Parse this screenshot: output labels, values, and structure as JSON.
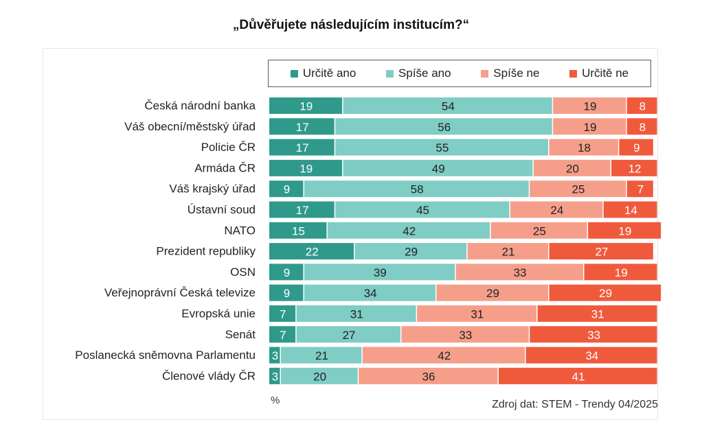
{
  "chart_data": {
    "type": "bar",
    "orientation": "horizontal",
    "stacked": true,
    "title": "„Důvěřujete následujícím institucím?“",
    "unit": "%",
    "xlim": [
      0,
      100
    ],
    "legend_position": "top",
    "grid": false,
    "categories": [
      "Česká národní banka",
      "Váš obecní/městský úřad",
      "Policie ČR",
      "Armáda ČR",
      "Váš krajský úřad",
      "Ústavní soud",
      "NATO",
      "Prezident republiky",
      "OSN",
      "Veřejnoprávní Česká televize",
      "Evropská unie",
      "Senát",
      "Poslanecká sněmovna Parlamentu",
      "Členové vlády ČR"
    ],
    "series": [
      {
        "name": "Určitě ano",
        "color": "#2f9a8b",
        "values": [
          19,
          17,
          17,
          19,
          9,
          17,
          15,
          22,
          9,
          9,
          7,
          7,
          3,
          3
        ]
      },
      {
        "name": "Spíše ano",
        "color": "#7fcdc4",
        "values": [
          54,
          56,
          55,
          49,
          58,
          45,
          42,
          29,
          39,
          34,
          31,
          27,
          21,
          20
        ]
      },
      {
        "name": "Spíše ne",
        "color": "#f59f8b",
        "values": [
          19,
          19,
          18,
          20,
          25,
          24,
          25,
          21,
          33,
          29,
          31,
          33,
          42,
          36
        ]
      },
      {
        "name": "Určitě ne",
        "color": "#f05a3c",
        "values": [
          8,
          8,
          9,
          12,
          7,
          14,
          19,
          27,
          19,
          29,
          31,
          33,
          34,
          41
        ]
      }
    ],
    "source": "Zdroj dat: STEM - Trendy 04/2025"
  }
}
